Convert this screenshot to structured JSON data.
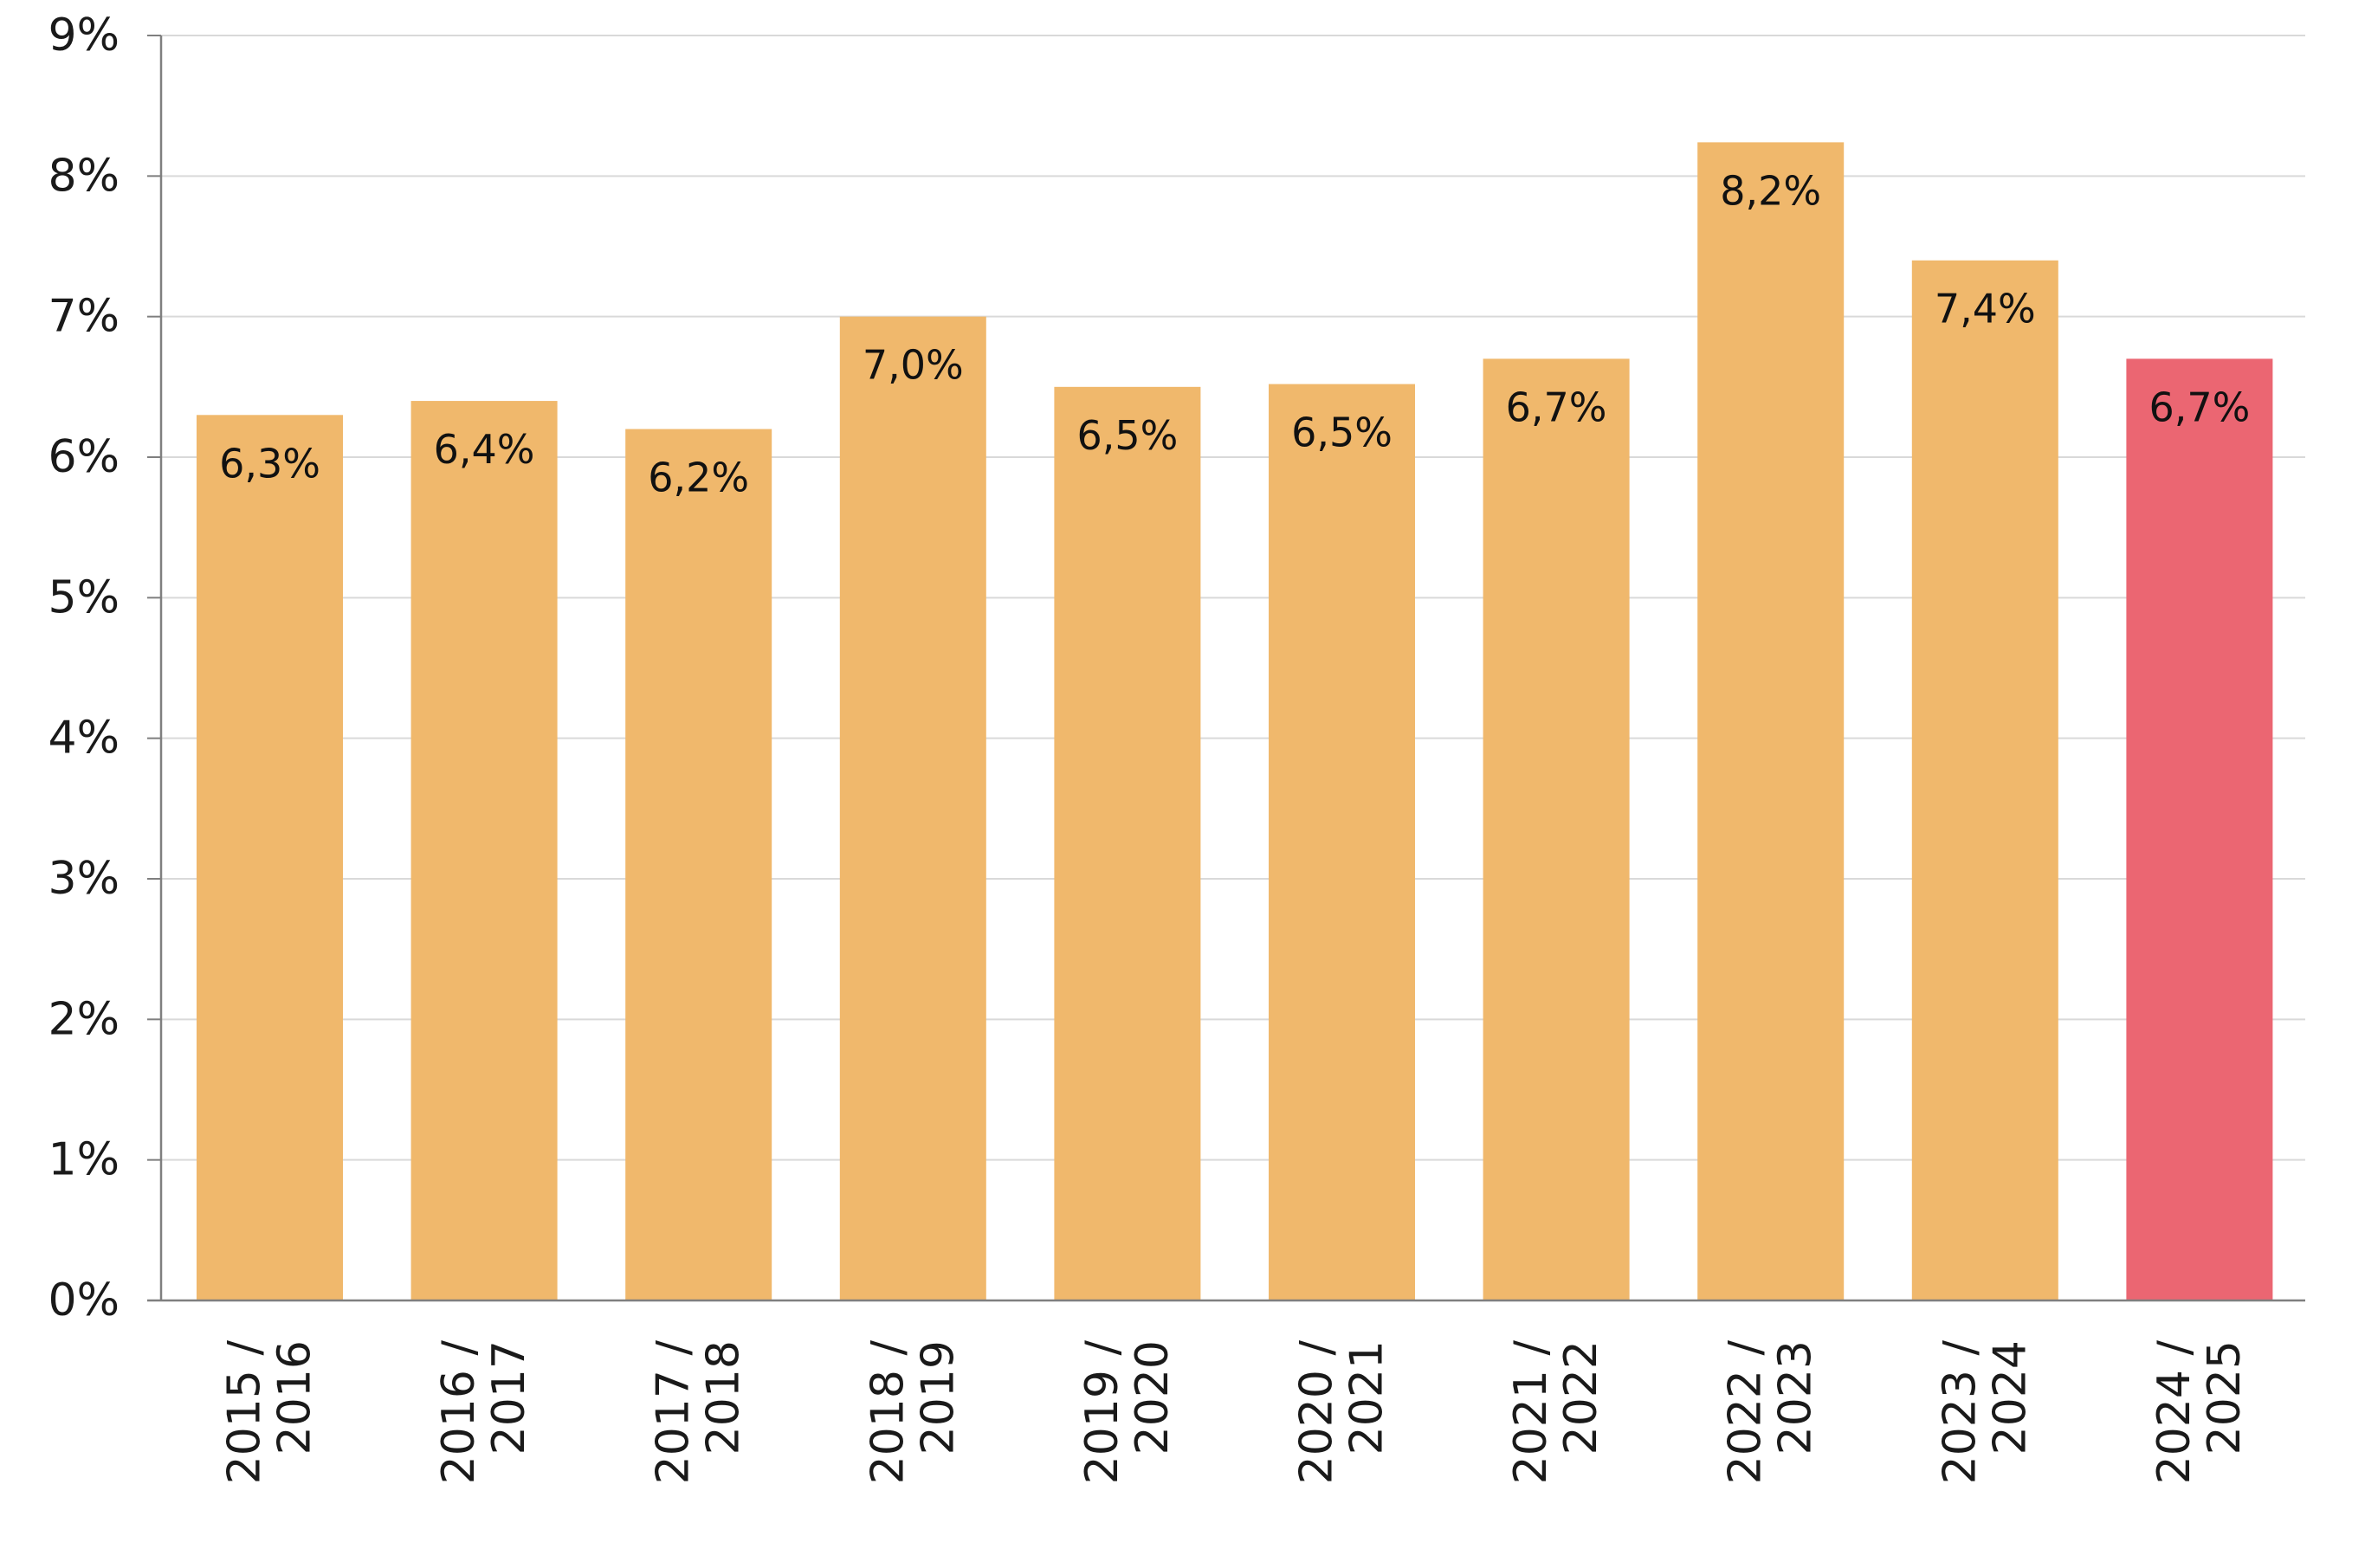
{
  "chart_data": {
    "type": "bar",
    "title": "",
    "xlabel": "",
    "ylabel": "",
    "categories": [
      [
        "2015 /",
        "2016"
      ],
      [
        "2016 /",
        "2017"
      ],
      [
        "2017 /",
        "2018"
      ],
      [
        "2018 /",
        "2019"
      ],
      [
        "2019 /",
        "2020"
      ],
      [
        "2020 /",
        "2021"
      ],
      [
        "2021 /",
        "2022"
      ],
      [
        "2022 /",
        "2023"
      ],
      [
        "2023 /",
        "2024"
      ],
      [
        "2024 /",
        "2025"
      ]
    ],
    "values": [
      6.3,
      6.4,
      6.2,
      7.0,
      6.5,
      6.52,
      6.7,
      8.24,
      7.4,
      6.7
    ],
    "data_labels": [
      "6,3%",
      "6,4%",
      "6,2%",
      "7,0%",
      "6,5%",
      "6,5%",
      "6,7%",
      "8,2%",
      "7,4%",
      "6,7%"
    ],
    "bar_colors": [
      "#f0b86c",
      "#f0b86c",
      "#f0b86c",
      "#f0b86c",
      "#f0b86c",
      "#f0b86c",
      "#f0b86c",
      "#f0b86c",
      "#f0b86c",
      "#eb6672"
    ],
    "ylim": [
      0,
      9
    ],
    "yticks": [
      0,
      1,
      2,
      3,
      4,
      5,
      6,
      7,
      8,
      9
    ],
    "ytick_labels": [
      "0%",
      "1%",
      "2%",
      "3%",
      "4%",
      "5%",
      "6%",
      "7%",
      "8%",
      "9%"
    ],
    "grid": true,
    "legend": "none",
    "colors": {
      "bar": "#f0b86c",
      "highlight": "#eb6672",
      "grid": "#d9d9d9",
      "axis": "#7f7f7f"
    }
  }
}
